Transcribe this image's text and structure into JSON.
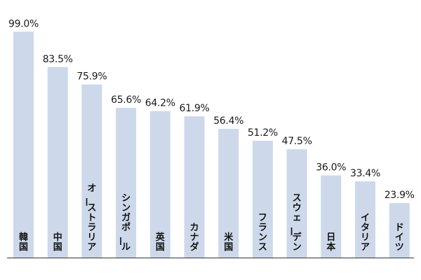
{
  "chart_data": {
    "type": "bar",
    "categories": [
      "韓国",
      "中国",
      "オーストラリア",
      "シンガポール",
      "英国",
      "カナダ",
      "米国",
      "フランス",
      "スウェーデン",
      "日本",
      "イタリア",
      "ドイツ"
    ],
    "values": [
      99.0,
      83.5,
      75.9,
      65.6,
      64.2,
      61.9,
      56.4,
      51.2,
      47.5,
      36.0,
      33.4,
      23.9
    ],
    "value_labels": [
      "99.0%",
      "83.5%",
      "75.9%",
      "65.6%",
      "64.2%",
      "61.9%",
      "56.4%",
      "51.2%",
      "47.5%",
      "36.0%",
      "33.4%",
      "23.9%"
    ],
    "unit": "%",
    "ylim": [
      0,
      100
    ],
    "grid": false,
    "legend": "none",
    "bar_color": "#cdd9ea",
    "label_color": "#1a1a1a"
  }
}
